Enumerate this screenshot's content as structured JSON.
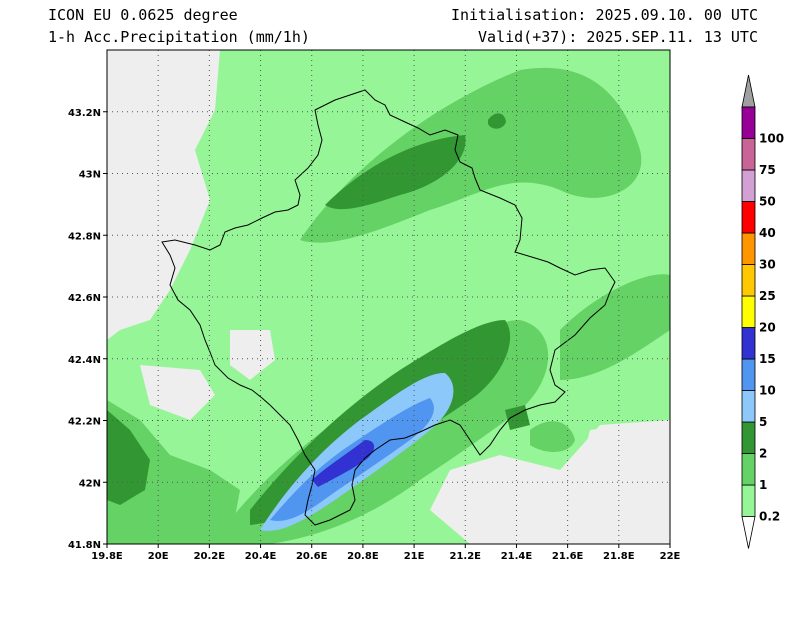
{
  "header": {
    "model": "ICON EU 0.0625 degree",
    "field": "1-h Acc.Precipitation (mm/1h)",
    "init": "Initialisation: 2025.09.10. 00 UTC",
    "valid": "Valid(+37): 2025.SEP.11. 13 UTC"
  },
  "map": {
    "lon_range": [
      19.8,
      22.0
    ],
    "lat_range": [
      41.8,
      43.4
    ],
    "lon_ticks": [
      "19.8E",
      "20E",
      "20.2E",
      "20.4E",
      "20.6E",
      "20.8E",
      "21E",
      "21.2E",
      "21.4E",
      "21.6E",
      "21.8E",
      "22E"
    ],
    "lat_ticks": [
      "41.8N",
      "42N",
      "42.2N",
      "42.4N",
      "42.6N",
      "42.8N",
      "43N",
      "43.2N"
    ],
    "grid": "dotted",
    "background_color": "#eeeeee"
  },
  "colorbar": {
    "thresholds": [
      "0.2",
      "1",
      "2",
      "5",
      "10",
      "15",
      "20",
      "25",
      "30",
      "40",
      "50",
      "75",
      "100"
    ],
    "colors": [
      "#96f596",
      "#64d264",
      "#329632",
      "#8cc8fa",
      "#5096f0",
      "#3232d2",
      "#ffff00",
      "#ffc800",
      "#ff9600",
      "#ff0000",
      "#d2a0d2",
      "#c86496",
      "#960096"
    ]
  }
}
